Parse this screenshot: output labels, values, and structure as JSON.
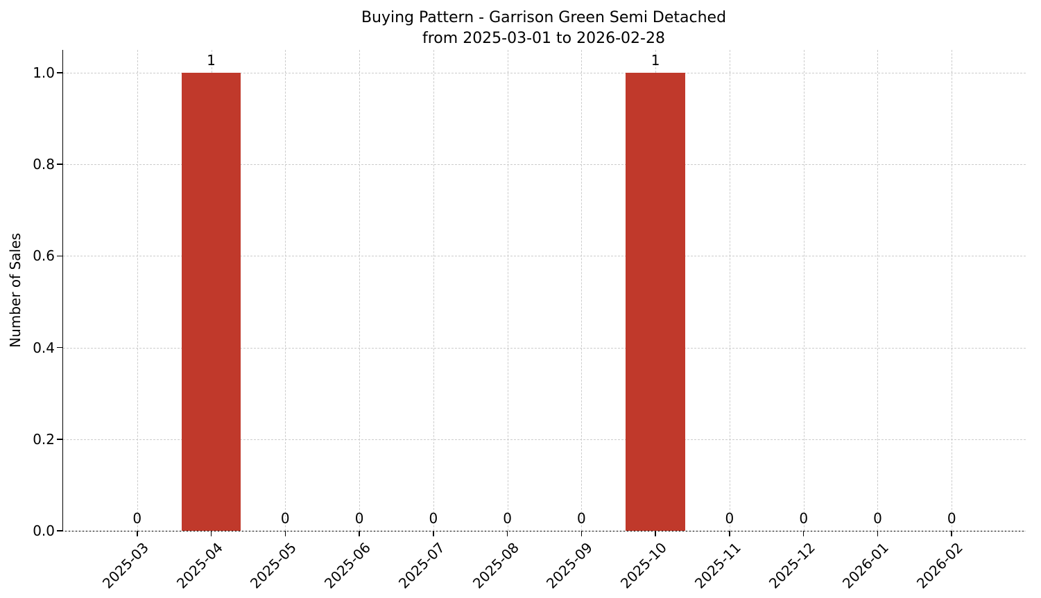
{
  "chart_data": {
    "type": "bar",
    "title": "Buying Pattern - Garrison Green Semi Detached",
    "subtitle": "from 2025-03-01 to 2026-02-28",
    "xlabel": "",
    "ylabel": "Number of Sales",
    "categories": [
      "2025-03",
      "2025-04",
      "2025-05",
      "2025-06",
      "2025-07",
      "2025-08",
      "2025-09",
      "2025-10",
      "2025-11",
      "2025-12",
      "2026-01",
      "2026-02"
    ],
    "values": [
      0,
      1,
      0,
      0,
      0,
      0,
      0,
      1,
      0,
      0,
      0,
      0
    ],
    "bar_value_labels": [
      "0",
      "1",
      "0",
      "0",
      "0",
      "0",
      "0",
      "1",
      "0",
      "0",
      "0",
      "0"
    ],
    "yticks": [
      0.0,
      0.2,
      0.4,
      0.6,
      0.8,
      1.0
    ],
    "ytick_labels": [
      "0.0",
      "0.2",
      "0.4",
      "0.6",
      "0.8",
      "1.0"
    ],
    "ylim": [
      0,
      1.05
    ],
    "bar_color": "#c0392b",
    "grid": true,
    "grid_color": "#cccccc",
    "grid_linestyle": "dashed",
    "legend_position": "none",
    "background": "#ffffff"
  }
}
